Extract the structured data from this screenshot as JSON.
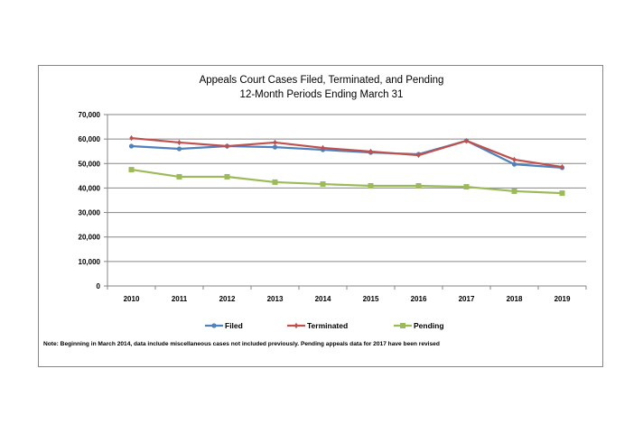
{
  "chart_data": {
    "type": "line",
    "title": "Appeals Court Cases Filed, Terminated, and Pending",
    "subtitle": "12-Month Periods Ending March 31",
    "xlabel": "",
    "ylabel": "",
    "categories": [
      "2010",
      "2011",
      "2012",
      "2013",
      "2014",
      "2015",
      "2016",
      "2017",
      "2018",
      "2019"
    ],
    "ylim": [
      0,
      70000
    ],
    "yticks": [
      0,
      10000,
      20000,
      30000,
      40000,
      50000,
      60000,
      70000
    ],
    "ytick_labels": [
      "0",
      "10,000",
      "20,000",
      "30,000",
      "40,000",
      "50,000",
      "60,000",
      "70,000"
    ],
    "grid": true,
    "legend_position": "bottom",
    "series": [
      {
        "name": "Filed",
        "color": "#4f81bd",
        "marker": "circle",
        "values": [
          57100,
          56000,
          57100,
          56700,
          55600,
          54500,
          53800,
          59300,
          49700,
          48300
        ]
      },
      {
        "name": "Terminated",
        "color": "#c0504d",
        "marker": "diamond",
        "values": [
          60400,
          58600,
          57100,
          58600,
          56400,
          54900,
          53400,
          59300,
          51600,
          48600
        ]
      },
      {
        "name": "Pending",
        "color": "#9bbb59",
        "marker": "square",
        "values": [
          47500,
          44600,
          44600,
          42400,
          41600,
          40900,
          40900,
          40500,
          38700,
          37900
        ]
      }
    ],
    "note": "Note: Beginning in March 2014, data include miscellaneous cases not included previously. Pending appeals data for 2017 have been revised"
  }
}
